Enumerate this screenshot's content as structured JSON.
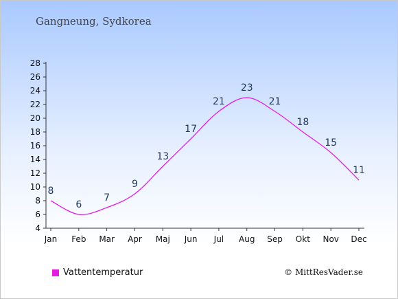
{
  "title": "Gangneung, Sydkorea",
  "copyright": "© MittResVader.se",
  "colors": {
    "line": "#e11ee1",
    "axis": "#333333",
    "label_text": "#233a5e"
  },
  "chart_data": {
    "type": "line",
    "title": "Gangneung, Sydkorea",
    "xlabel": "",
    "ylabel": "",
    "categories": [
      "Jan",
      "Feb",
      "Mar",
      "Apr",
      "Maj",
      "Jun",
      "Jul",
      "Aug",
      "Sep",
      "Okt",
      "Nov",
      "Dec"
    ],
    "series": [
      {
        "name": "Vattentemperatur",
        "values": [
          8,
          6,
          7,
          9,
          13,
          17,
          21,
          23,
          21,
          18,
          15,
          11
        ],
        "labels": [
          "8",
          "6",
          "7",
          "9",
          "13",
          "17",
          "21",
          "23",
          "21",
          "18",
          "15",
          "11"
        ]
      }
    ],
    "ylim": [
      4,
      28
    ],
    "yticks": [
      4,
      6,
      8,
      10,
      12,
      14,
      16,
      18,
      20,
      22,
      24,
      26,
      28
    ],
    "ytick_labels": [
      "4",
      "6",
      "8",
      "10",
      "12",
      "14",
      "16",
      "18",
      "20",
      "22",
      "24",
      "26",
      "28"
    ],
    "grid": false,
    "legend_position": "bottom-left"
  }
}
